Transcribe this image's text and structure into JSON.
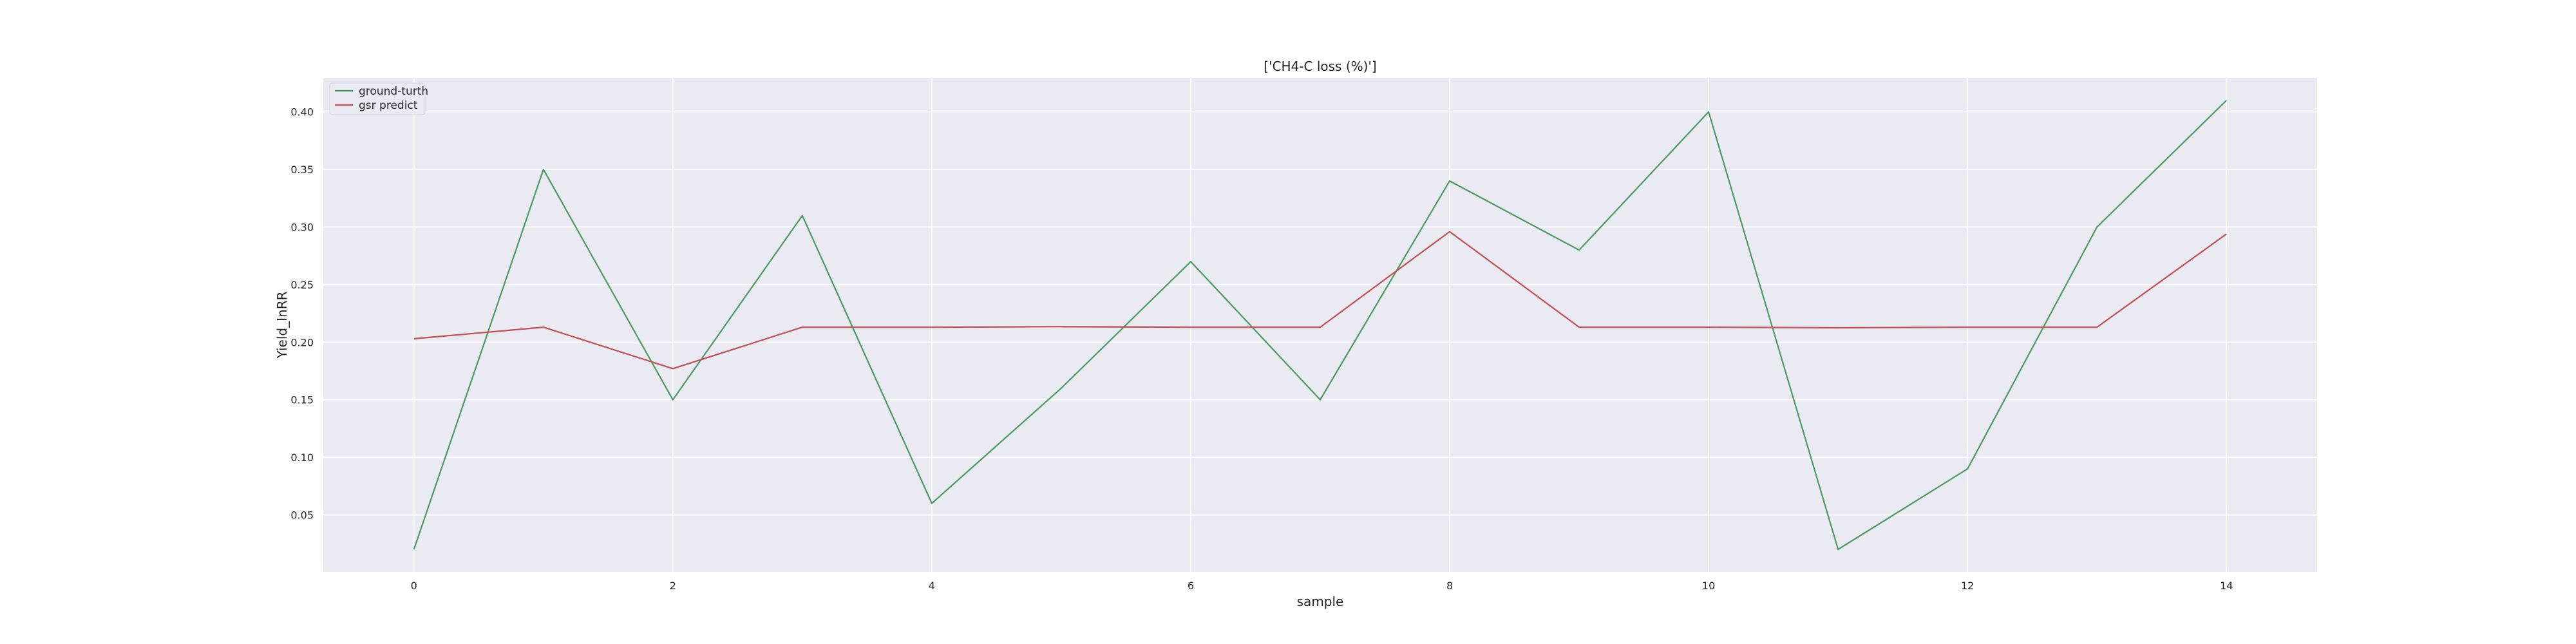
{
  "chart_data": {
    "type": "line",
    "title": "['CH4-C loss (%)']",
    "xlabel": "sample",
    "ylabel": "Yield_InRR",
    "x": [
      0,
      1,
      2,
      3,
      4,
      5,
      6,
      7,
      8,
      9,
      10,
      11,
      12,
      13,
      14
    ],
    "series": [
      {
        "name": "ground-turth",
        "color": "#4a9a5e",
        "values": [
          0.02,
          0.35,
          0.15,
          0.31,
          0.06,
          0.16,
          0.27,
          0.15,
          0.34,
          0.28,
          0.4,
          0.02,
          0.09,
          0.3,
          0.41
        ]
      },
      {
        "name": "gsr predict",
        "color": "#c44e52",
        "values": [
          0.203,
          0.213,
          0.177,
          0.213,
          0.213,
          0.2135,
          0.213,
          0.213,
          0.296,
          0.213,
          0.213,
          0.2125,
          0.213,
          0.213,
          0.294
        ]
      }
    ],
    "xticks": [
      0,
      2,
      4,
      6,
      8,
      10,
      12,
      14
    ],
    "yticks": [
      0.05,
      0.1,
      0.15,
      0.2,
      0.25,
      0.3,
      0.35,
      0.4
    ],
    "xtick_labels": [
      "0",
      "2",
      "4",
      "6",
      "8",
      "10",
      "12",
      "14"
    ],
    "ytick_labels": [
      "0.05",
      "0.10",
      "0.15",
      "0.20",
      "0.25",
      "0.30",
      "0.35",
      "0.40"
    ],
    "xlim": [
      -0.7,
      14.7
    ],
    "ylim": [
      0.0005,
      0.4295
    ],
    "grid": true,
    "legend_position": "top-left",
    "plot_background": "#eaeaf2",
    "grid_color": "#ffffff"
  }
}
